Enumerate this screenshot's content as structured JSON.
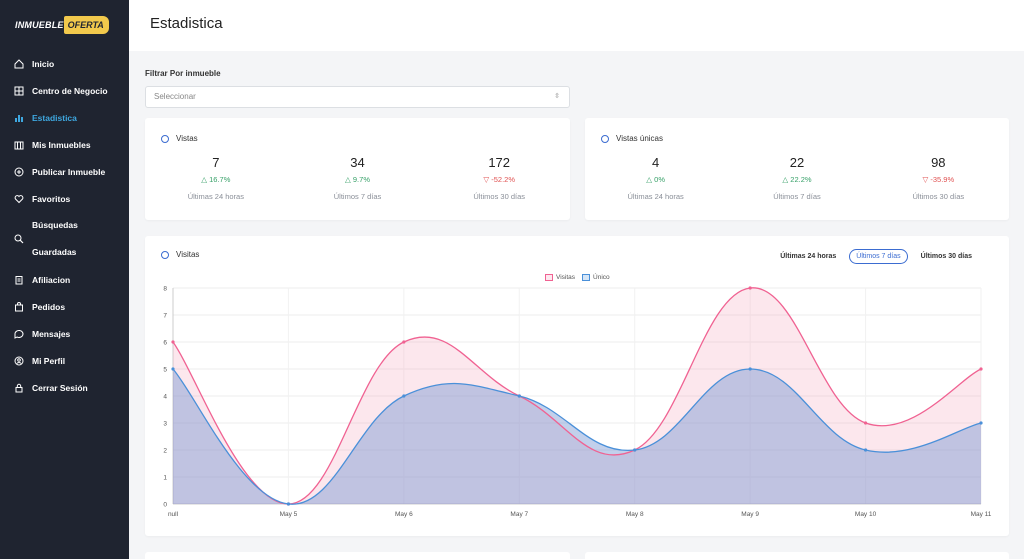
{
  "brand": {
    "part1": "INMUEBLE",
    "part2": "OFERTA"
  },
  "sidebar": {
    "items": [
      {
        "label": "Inicio",
        "icon": "home-icon"
      },
      {
        "label": "Centro de Negocio",
        "icon": "dashboard-icon"
      },
      {
        "label": "Estadistica",
        "icon": "bar-chart-icon",
        "active": true
      },
      {
        "label": "Mis Inmuebles",
        "icon": "building-icon"
      },
      {
        "label": "Publicar Inmueble",
        "icon": "plus-circle-icon"
      },
      {
        "label": "Favoritos",
        "icon": "heart-icon"
      },
      {
        "label": "Búsquedas",
        "label2": "Guardadas",
        "icon": "search-icon"
      },
      {
        "label": "Afiliacion",
        "icon": "clipboard-icon"
      },
      {
        "label": "Pedidos",
        "icon": "bag-icon"
      },
      {
        "label": "Mensajes",
        "icon": "chat-icon"
      },
      {
        "label": "Mi Perfil",
        "icon": "user-circle-icon"
      },
      {
        "label": "Cerrar Sesión",
        "icon": "lock-icon"
      }
    ]
  },
  "header": {
    "title": "Estadistica"
  },
  "filter": {
    "label": "Filtrar Por inmueble",
    "placeholder": "Seleccionar"
  },
  "vistas": {
    "title": "Vistas",
    "stats": [
      {
        "value": "7",
        "delta": "16.7%",
        "trend": "up",
        "period": "Últimas 24 horas"
      },
      {
        "value": "34",
        "delta": "9.7%",
        "trend": "up",
        "period": "Últimos 7 días"
      },
      {
        "value": "172",
        "delta": "-52.2%",
        "trend": "down",
        "period": "Últimos 30 días"
      }
    ]
  },
  "vistas_unicas": {
    "title": "Vistas únicas",
    "stats": [
      {
        "value": "4",
        "delta": "0%",
        "trend": "up",
        "period": "Últimas 24 horas"
      },
      {
        "value": "22",
        "delta": "22.2%",
        "trend": "up",
        "period": "Últimos 7 días"
      },
      {
        "value": "98",
        "delta": "-35.9%",
        "trend": "down",
        "period": "Últimos 30 días"
      }
    ]
  },
  "chart_card": {
    "title": "Visitas",
    "ranges": [
      "Últimas 24 horas",
      "Últimos 7 días",
      "Últimos 30 días"
    ],
    "selected_range": 1
  },
  "chart_data": {
    "type": "area",
    "categories": [
      "null",
      "May 5",
      "May 6",
      "May 7",
      "May 8",
      "May 9",
      "May 10",
      "May 11"
    ],
    "series": [
      {
        "name": "Visitas",
        "values": [
          6,
          0,
          6,
          4,
          2,
          8,
          3,
          5
        ],
        "color": "#f06292"
      },
      {
        "name": "Único",
        "values": [
          5,
          0,
          4,
          4,
          2,
          5,
          2,
          3
        ],
        "color": "#4a90d9"
      }
    ],
    "ylim": [
      0,
      8
    ],
    "yticks": [
      "0",
      "1",
      "2",
      "3",
      "4",
      "5",
      "6",
      "7",
      "8"
    ],
    "grid": true,
    "legend": "top-center"
  }
}
